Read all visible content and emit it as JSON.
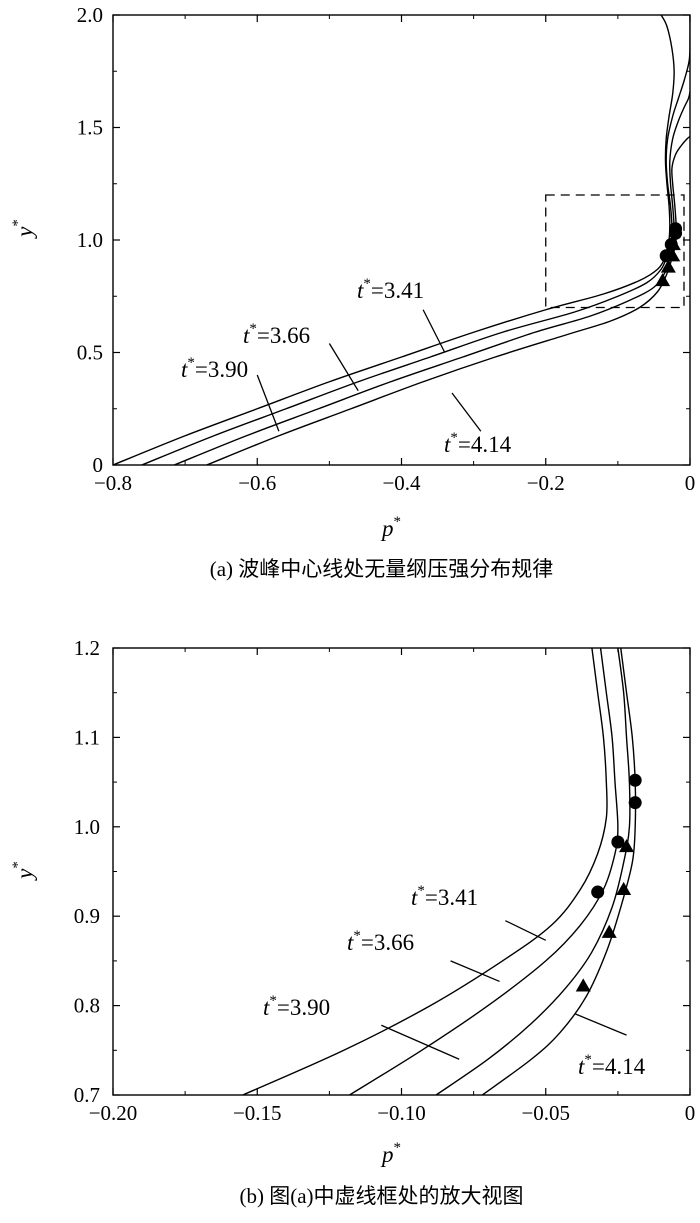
{
  "chart_data": [
    {
      "type": "line",
      "panel": "a",
      "caption": "(a) 波峰中心线处无量纲压强分布规律",
      "xlabel": "p*",
      "ylabel": "y*",
      "xlim": [
        -0.8,
        0
      ],
      "ylim": [
        0,
        2.0
      ],
      "xticks": [
        "−0.8",
        "−0.6",
        "−0.4",
        "−0.2",
        "0"
      ],
      "yticks": [
        "0",
        "0.5",
        "1.0",
        "1.5",
        "2.0"
      ],
      "grid": false,
      "series": [
        {
          "name": "t*=3.41",
          "points": [
            [
              -0.8,
              0.0
            ],
            [
              -0.7,
              0.13
            ],
            [
              -0.6,
              0.25
            ],
            [
              -0.5,
              0.37
            ],
            [
              -0.4,
              0.48
            ],
            [
              -0.3,
              0.59
            ],
            [
              -0.2,
              0.69
            ],
            [
              -0.12,
              0.76
            ],
            [
              -0.07,
              0.82
            ],
            [
              -0.045,
              0.87
            ],
            [
              -0.035,
              0.92
            ],
            [
              -0.03,
              0.98
            ],
            [
              -0.028,
              1.05
            ],
            [
              -0.029,
              1.15
            ],
            [
              -0.032,
              1.25
            ],
            [
              -0.034,
              1.35
            ],
            [
              -0.033,
              1.45
            ],
            [
              -0.029,
              1.55
            ],
            [
              -0.024,
              1.65
            ],
            [
              -0.022,
              1.75
            ],
            [
              -0.025,
              1.85
            ],
            [
              -0.032,
              1.95
            ],
            [
              -0.04,
              2.0
            ]
          ]
        },
        {
          "name": "t*=3.66",
          "points": [
            [
              -0.76,
              0.0
            ],
            [
              -0.66,
              0.13
            ],
            [
              -0.56,
              0.25
            ],
            [
              -0.46,
              0.37
            ],
            [
              -0.36,
              0.48
            ],
            [
              -0.26,
              0.59
            ],
            [
              -0.16,
              0.68
            ],
            [
              -0.1,
              0.75
            ],
            [
              -0.06,
              0.81
            ],
            [
              -0.04,
              0.87
            ],
            [
              -0.032,
              0.93
            ],
            [
              -0.027,
              0.98
            ],
            [
              -0.025,
              1.05
            ],
            [
              -0.027,
              1.15
            ],
            [
              -0.031,
              1.25
            ],
            [
              -0.033,
              1.35
            ],
            [
              -0.031,
              1.45
            ],
            [
              -0.024,
              1.55
            ],
            [
              -0.016,
              1.63
            ],
            [
              -0.008,
              1.71
            ],
            [
              -0.001,
              1.8
            ],
            [
              0.0,
              1.9
            ],
            [
              0.0,
              2.0
            ]
          ]
        },
        {
          "name": "t*=3.90",
          "points": [
            [
              -0.715,
              0.0
            ],
            [
              -0.615,
              0.13
            ],
            [
              -0.515,
              0.25
            ],
            [
              -0.415,
              0.37
            ],
            [
              -0.315,
              0.48
            ],
            [
              -0.215,
              0.59
            ],
            [
              -0.14,
              0.66
            ],
            [
              -0.085,
              0.73
            ],
            [
              -0.05,
              0.79
            ],
            [
              -0.034,
              0.86
            ],
            [
              -0.027,
              0.93
            ],
            [
              -0.024,
              0.98
            ],
            [
              -0.022,
              1.05
            ],
            [
              -0.024,
              1.15
            ],
            [
              -0.027,
              1.25
            ],
            [
              -0.028,
              1.35
            ],
            [
              -0.024,
              1.45
            ],
            [
              -0.016,
              1.53
            ],
            [
              -0.008,
              1.59
            ],
            [
              -0.002,
              1.63
            ],
            [
              0.0,
              1.66
            ]
          ]
        },
        {
          "name": "t*=4.14",
          "points": [
            [
              -0.67,
              0.0
            ],
            [
              -0.57,
              0.13
            ],
            [
              -0.47,
              0.25
            ],
            [
              -0.37,
              0.37
            ],
            [
              -0.27,
              0.48
            ],
            [
              -0.17,
              0.58
            ],
            [
              -0.11,
              0.64
            ],
            [
              -0.07,
              0.7
            ],
            [
              -0.045,
              0.77
            ],
            [
              -0.032,
              0.85
            ],
            [
              -0.024,
              0.93
            ],
            [
              -0.02,
              0.98
            ],
            [
              -0.019,
              1.05
            ],
            [
              -0.021,
              1.15
            ],
            [
              -0.024,
              1.25
            ],
            [
              -0.025,
              1.32
            ],
            [
              -0.02,
              1.38
            ],
            [
              -0.012,
              1.42
            ],
            [
              -0.004,
              1.45
            ],
            [
              0.0,
              1.46
            ]
          ]
        }
      ],
      "markers": {
        "circles": [
          [
            -0.033,
            0.93
          ],
          [
            -0.026,
            0.98
          ],
          [
            -0.02,
            1.03
          ],
          [
            -0.02,
            1.05
          ]
        ],
        "triangles": [
          [
            -0.038,
            0.82
          ],
          [
            -0.03,
            0.88
          ],
          [
            -0.024,
            0.93
          ],
          [
            -0.023,
            0.98
          ]
        ]
      },
      "inset_box": {
        "x": [
          -0.2,
          0
        ],
        "y": [
          0.7,
          1.2
        ]
      },
      "annotations": [
        {
          "text": "t*=3.41",
          "sup": "*",
          "base": "t",
          "rest": "=3.41",
          "leader": [
            [
              -0.37,
              0.69
            ],
            [
              -0.34,
              0.5
            ]
          ]
        },
        {
          "text": "t*=3.66",
          "sup": "*",
          "base": "t",
          "rest": "=3.66",
          "leader": [
            [
              -0.5,
              0.54
            ],
            [
              -0.46,
              0.33
            ]
          ]
        },
        {
          "text": "t*=3.90",
          "sup": "*",
          "base": "t",
          "rest": "=3.90",
          "leader": [
            [
              -0.6,
              0.4
            ],
            [
              -0.57,
              0.15
            ]
          ]
        },
        {
          "text": "t*=4.14",
          "sup": "*",
          "base": "t",
          "rest": "=4.14",
          "leader": [
            [
              -0.29,
              0.15
            ],
            [
              -0.33,
              0.32
            ]
          ]
        }
      ]
    },
    {
      "type": "line",
      "panel": "b",
      "caption": "(b) 图(a)中虚线框处的放大视图",
      "xlabel": "p*",
      "ylabel": "y*",
      "xlim": [
        -0.2,
        0
      ],
      "ylim": [
        0.7,
        1.2
      ],
      "xticks": [
        "−0.20",
        "−0.15",
        "−0.10",
        "−0.05",
        "0"
      ],
      "yticks": [
        "0.7",
        "0.8",
        "0.9",
        "1.0",
        "1.1",
        "1.2"
      ],
      "grid": false,
      "series": [
        {
          "name": "t*=3.41",
          "points": [
            [
              -0.155,
              0.7
            ],
            [
              -0.12,
              0.75
            ],
            [
              -0.09,
              0.8
            ],
            [
              -0.065,
              0.85
            ],
            [
              -0.048,
              0.89
            ],
            [
              -0.038,
              0.93
            ],
            [
              -0.032,
              0.97
            ],
            [
              -0.029,
              1.01
            ],
            [
              -0.029,
              1.05
            ],
            [
              -0.03,
              1.1
            ],
            [
              -0.032,
              1.15
            ],
            [
              -0.034,
              1.2
            ]
          ]
        },
        {
          "name": "t*=3.66",
          "points": [
            [
              -0.118,
              0.7
            ],
            [
              -0.093,
              0.75
            ],
            [
              -0.07,
              0.8
            ],
            [
              -0.05,
              0.85
            ],
            [
              -0.038,
              0.89
            ],
            [
              -0.03,
              0.93
            ],
            [
              -0.026,
              0.97
            ],
            [
              -0.025,
              1.0
            ],
            [
              -0.026,
              1.05
            ],
            [
              -0.027,
              1.1
            ],
            [
              -0.029,
              1.15
            ],
            [
              -0.031,
              1.2
            ]
          ]
        },
        {
          "name": "t*=3.90",
          "points": [
            [
              -0.088,
              0.7
            ],
            [
              -0.07,
              0.74
            ],
            [
              -0.055,
              0.78
            ],
            [
              -0.043,
              0.82
            ],
            [
              -0.034,
              0.86
            ],
            [
              -0.027,
              0.91
            ],
            [
              -0.023,
              0.96
            ],
            [
              -0.021,
              1.0
            ],
            [
              -0.021,
              1.05
            ],
            [
              -0.022,
              1.1
            ],
            [
              -0.023,
              1.15
            ],
            [
              -0.025,
              1.2
            ]
          ]
        },
        {
          "name": "t*=4.14",
          "points": [
            [
              -0.072,
              0.7
            ],
            [
              -0.055,
              0.74
            ],
            [
              -0.045,
              0.77
            ],
            [
              -0.036,
              0.81
            ],
            [
              -0.029,
              0.86
            ],
            [
              -0.024,
              0.91
            ],
            [
              -0.02,
              0.96
            ],
            [
              -0.019,
              1.0
            ],
            [
              -0.019,
              1.05
            ],
            [
              -0.02,
              1.1
            ],
            [
              -0.022,
              1.15
            ],
            [
              -0.024,
              1.2
            ]
          ]
        }
      ],
      "markers": {
        "circles": [
          [
            -0.032,
            0.927
          ],
          [
            -0.025,
            0.983
          ],
          [
            -0.019,
            1.027
          ],
          [
            -0.019,
            1.052
          ]
        ],
        "triangles": [
          [
            -0.037,
            0.822
          ],
          [
            -0.028,
            0.882
          ],
          [
            -0.023,
            0.93
          ],
          [
            -0.022,
            0.978
          ]
        ]
      },
      "annotations": [
        {
          "text": "t*=3.41",
          "sup": "*",
          "base": "t",
          "rest": "=3.41",
          "leader": [
            [
              -0.064,
              0.895
            ],
            [
              -0.05,
              0.873
            ]
          ]
        },
        {
          "text": "t*=3.66",
          "sup": "*",
          "base": "t",
          "rest": "=3.66",
          "leader": [
            [
              -0.083,
              0.85
            ],
            [
              -0.066,
              0.827
            ]
          ]
        },
        {
          "text": "t*=3.90",
          "sup": "*",
          "base": "t",
          "rest": "=3.90",
          "leader": [
            [
              -0.107,
              0.778
            ],
            [
              -0.08,
              0.74
            ]
          ]
        },
        {
          "text": "t*=4.14",
          "sup": "*",
          "base": "t",
          "rest": "=4.14",
          "leader": [
            [
              -0.04,
              0.791
            ],
            [
              -0.022,
              0.767
            ]
          ]
        }
      ]
    }
  ]
}
